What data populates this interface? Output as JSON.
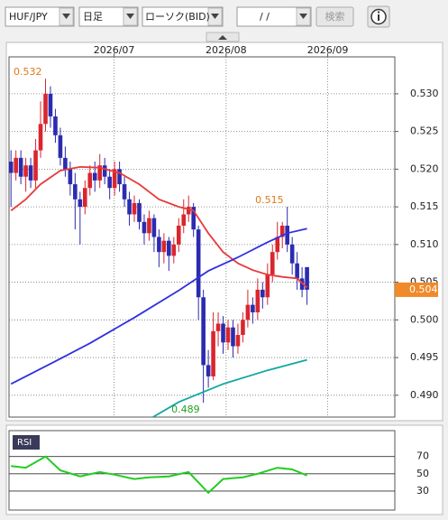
{
  "toolbar": {
    "symbol": "HUF/JPY",
    "period": "日足",
    "chart_kind": "ローソク(BID)",
    "date": "/  /",
    "search": "検索"
  },
  "chart_data": [
    {
      "type": "candlestick",
      "categories": [
        null,
        null,
        null,
        null,
        null,
        null,
        null,
        null,
        null,
        null,
        null,
        null,
        null,
        null,
        null,
        null,
        null,
        null,
        null,
        null,
        null,
        null,
        null,
        null,
        null,
        null,
        null,
        null,
        null,
        null,
        null,
        null,
        null,
        null,
        null,
        null,
        null,
        null,
        null,
        null,
        null,
        null,
        null,
        null,
        null,
        null,
        null,
        null,
        null,
        null,
        null,
        null,
        null,
        null,
        null,
        null,
        null,
        null,
        null,
        null,
        null
      ],
      "open": [
        0.521,
        0.5195,
        0.5215,
        0.519,
        0.5205,
        0.5185,
        0.5225,
        0.526,
        0.53,
        0.527,
        0.5245,
        0.5215,
        0.52,
        0.518,
        0.516,
        0.515,
        0.5175,
        0.5195,
        0.5185,
        0.5205,
        0.519,
        0.5175,
        0.52,
        0.518,
        0.516,
        0.514,
        0.5155,
        0.513,
        0.5115,
        0.5135,
        0.511,
        0.509,
        0.5105,
        0.5085,
        0.51,
        0.5125,
        0.514,
        0.515,
        0.512,
        0.503,
        0.494,
        0.4925,
        0.4985,
        0.4995,
        0.497,
        0.499,
        0.4965,
        0.498,
        0.5,
        0.502,
        0.501,
        0.504,
        0.503,
        0.506,
        0.509,
        0.511,
        0.5125,
        0.51,
        0.5075,
        0.5055,
        0.507
      ],
      "high": [
        0.5225,
        0.5225,
        0.5225,
        0.5215,
        0.5215,
        0.524,
        0.529,
        0.532,
        0.531,
        0.528,
        0.5255,
        0.523,
        0.521,
        0.5195,
        0.517,
        0.5185,
        0.5205,
        0.521,
        0.522,
        0.5215,
        0.52,
        0.521,
        0.521,
        0.519,
        0.517,
        0.5165,
        0.516,
        0.514,
        0.5145,
        0.514,
        0.512,
        0.5115,
        0.511,
        0.511,
        0.5135,
        0.516,
        0.5165,
        0.5155,
        0.5125,
        0.504,
        0.496,
        0.501,
        0.501,
        0.5005,
        0.5,
        0.5,
        0.4995,
        0.501,
        0.504,
        0.503,
        0.5055,
        0.505,
        0.5075,
        0.51,
        0.513,
        0.513,
        0.515,
        0.511,
        0.509,
        0.507,
        0.507
      ],
      "low": [
        0.515,
        0.5185,
        0.518,
        0.517,
        0.5175,
        0.5175,
        0.5215,
        0.525,
        0.5255,
        0.5235,
        0.5205,
        0.519,
        0.5165,
        0.512,
        0.51,
        0.514,
        0.5165,
        0.517,
        0.5175,
        0.518,
        0.516,
        0.5165,
        0.517,
        0.515,
        0.5125,
        0.513,
        0.512,
        0.51,
        0.5105,
        0.509,
        0.507,
        0.5075,
        0.5065,
        0.5075,
        0.509,
        0.5115,
        0.513,
        0.511,
        0.5,
        0.489,
        0.491,
        0.492,
        0.4965,
        0.4955,
        0.496,
        0.495,
        0.4955,
        0.497,
        0.499,
        0.4995,
        0.5,
        0.5015,
        0.502,
        0.505,
        0.508,
        0.5095,
        0.509,
        0.506,
        0.504,
        0.503,
        0.502
      ],
      "close": [
        0.5195,
        0.5215,
        0.519,
        0.5205,
        0.5185,
        0.5225,
        0.526,
        0.53,
        0.527,
        0.5245,
        0.5215,
        0.52,
        0.518,
        0.516,
        0.515,
        0.5175,
        0.5195,
        0.5185,
        0.5205,
        0.519,
        0.5175,
        0.52,
        0.518,
        0.516,
        0.514,
        0.5155,
        0.513,
        0.5115,
        0.5135,
        0.511,
        0.509,
        0.5105,
        0.5085,
        0.51,
        0.5125,
        0.514,
        0.515,
        0.512,
        0.503,
        0.494,
        0.4925,
        0.4985,
        0.4995,
        0.497,
        0.499,
        0.4965,
        0.498,
        0.5,
        0.502,
        0.501,
        0.504,
        0.503,
        0.506,
        0.509,
        0.511,
        0.5125,
        0.51,
        0.5075,
        0.5055,
        0.504,
        0.504
      ],
      "up_color": "#d9262e",
      "down_color": "#2b2bb0",
      "xlim": [
        -0.4,
        77.8
      ],
      "xticks": [
        {
          "value": 20.9,
          "label": "2026/07"
        },
        {
          "value": 43.6,
          "label": "2026/08"
        },
        {
          "value": 64.2,
          "label": "2026/09"
        }
      ],
      "ylim": [
        0.4871,
        0.5349
      ],
      "yticks": [
        {
          "value": 0.49,
          "label": "0.490"
        },
        {
          "value": 0.495,
          "label": "0.495"
        },
        {
          "value": 0.5,
          "label": "0.500"
        },
        {
          "value": 0.505,
          "label": "0.505"
        },
        {
          "value": 0.51,
          "label": "0.510"
        },
        {
          "value": 0.515,
          "label": "0.515"
        },
        {
          "value": 0.52,
          "label": "0.520"
        },
        {
          "value": 0.525,
          "label": "0.525"
        },
        {
          "value": 0.53,
          "label": "0.530"
        }
      ],
      "grid": true,
      "series": [
        {
          "color": "#e83a3a",
          "x": [
            0,
            3,
            6,
            10,
            14,
            18,
            22,
            26,
            30,
            34,
            37,
            40,
            43,
            46,
            49,
            52,
            55,
            58,
            60
          ],
          "values": [
            0.5145,
            0.516,
            0.518,
            0.5198,
            0.5203,
            0.5202,
            0.5195,
            0.518,
            0.516,
            0.515,
            0.5145,
            0.5115,
            0.509,
            0.5075,
            0.5066,
            0.506,
            0.5057,
            0.5055,
            0.5043
          ]
        },
        {
          "color": "#3030e0",
          "x": [
            0,
            9,
            16,
            25,
            34,
            40,
            46,
            52,
            56,
            60
          ],
          "values": [
            0.4915,
            0.4945,
            0.4969,
            0.5003,
            0.5039,
            0.5065,
            0.5083,
            0.5103,
            0.5115,
            0.5121
          ]
        },
        {
          "color": "#10a8a0",
          "x": [
            28,
            34,
            43,
            52,
            60
          ],
          "values": [
            0.4868,
            0.4891,
            0.4915,
            0.4933,
            0.4947
          ]
        }
      ],
      "annotations": [
        {
          "x": 7,
          "value": 0.532,
          "color": "#e07818"
        },
        {
          "x": 56,
          "value": 0.515,
          "color": "#e07818"
        },
        {
          "x": 39,
          "value": 0.489,
          "color": "#22a022"
        }
      ],
      "last_price": 0.504,
      "last_price_color": "#f08a2a"
    },
    {
      "type": "line",
      "title": "RSI",
      "color": "#22cc22",
      "xlim": [
        -0.4,
        77.8
      ],
      "x": [
        0,
        3,
        7,
        10,
        14,
        18,
        21,
        25,
        28,
        32,
        36,
        40,
        43,
        47,
        50,
        54,
        57,
        60
      ],
      "values": [
        59,
        57,
        70,
        54,
        47,
        52,
        49,
        44,
        46,
        47,
        52,
        28,
        44,
        46,
        50,
        57,
        55,
        48
      ],
      "ylim": [
        8,
        100
      ],
      "yticks": [
        70,
        50,
        30
      ]
    }
  ]
}
